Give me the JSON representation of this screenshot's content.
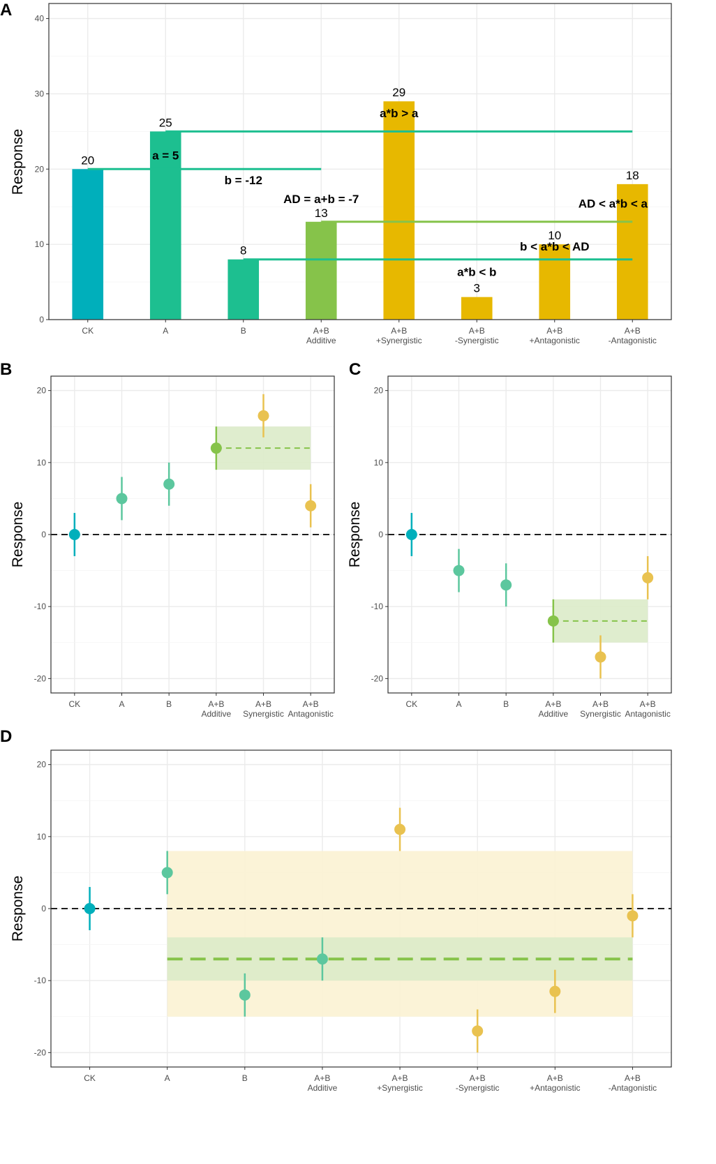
{
  "colors": {
    "ck": "#00AFBB",
    "single": "#1DBF90",
    "single_light": "#5CC79E",
    "additive": "#86C34A",
    "interaction": "#E7B800",
    "interaction_light": "#E9C250",
    "ribbon_green": "#DCEBC9",
    "ribbon_yellow": "#FBF2D3",
    "zero_line": "#000000"
  },
  "chart_data": [
    {
      "panel": "A",
      "type": "bar",
      "title": "",
      "xlabel": "",
      "ylabel": "Response",
      "ylim": [
        0,
        42
      ],
      "yticks": [
        0,
        10,
        20,
        30,
        40
      ],
      "categories": [
        "CK",
        "A",
        "B",
        "A+B\nAdditive",
        "A+B\n+Synergistic",
        "A+B\n-Synergistic",
        "A+B\n+Antagonistic",
        "A+B\n-Antagonistic"
      ],
      "values": [
        20,
        25,
        8,
        13,
        29,
        3,
        10,
        18
      ],
      "bar_labels": [
        "20",
        "25",
        "8",
        "13",
        "29",
        "3",
        "10",
        "18"
      ],
      "bar_color_groups": [
        "ck",
        "single",
        "single",
        "additive",
        "interaction",
        "interaction",
        "interaction",
        "interaction"
      ],
      "reference_lines": [
        {
          "y": 25,
          "from": 1,
          "to": 7,
          "color": "single"
        },
        {
          "y": 20,
          "from": 0,
          "to": 3,
          "color": "single"
        },
        {
          "y": 13,
          "from": 3,
          "to": 7,
          "color": "additive"
        },
        {
          "y": 8,
          "from": 2,
          "to": 7,
          "color": "single"
        }
      ],
      "annotations": [
        {
          "text": "a = 5",
          "x": 1,
          "y": 21.3
        },
        {
          "text": "b = -12",
          "x": 2,
          "y": 18.0
        },
        {
          "text": "AD = a+b = -7",
          "x": 3,
          "y": 15.5
        },
        {
          "text": "a*b > a",
          "x": 4,
          "y": 26.9
        },
        {
          "text": "AD < a*b < a",
          "x": 6.75,
          "y": 14.9
        },
        {
          "text": "b < a*b < AD",
          "x": 6,
          "y": 9.2
        },
        {
          "text": "a*b < b",
          "x": 5,
          "y": 5.8
        }
      ]
    },
    {
      "panel": "B",
      "type": "scatter",
      "title": "",
      "xlabel": "",
      "ylabel": "Response",
      "ylim": [
        -22,
        22
      ],
      "yticks": [
        -20,
        -10,
        0,
        10,
        20
      ],
      "categories": [
        "CK",
        "A",
        "B",
        "A+B\nAdditive",
        "A+B\nSynergistic",
        "A+B\nAntagonistic"
      ],
      "points": [
        {
          "x": 0,
          "y": 0,
          "lo": -3,
          "hi": 3,
          "color": "ck"
        },
        {
          "x": 1,
          "y": 5,
          "lo": 2,
          "hi": 8,
          "color": "single_light"
        },
        {
          "x": 2,
          "y": 7,
          "lo": 4,
          "hi": 10,
          "color": "single_light"
        },
        {
          "x": 3,
          "y": 12,
          "lo": 9,
          "hi": 15,
          "color": "additive"
        },
        {
          "x": 4,
          "y": 16.5,
          "lo": 13.5,
          "hi": 19.5,
          "color": "interaction_light"
        },
        {
          "x": 5,
          "y": 4,
          "lo": 1,
          "hi": 7,
          "color": "interaction_light"
        }
      ],
      "bands": [
        {
          "from": 3,
          "to": 5,
          "lo": 9,
          "hi": 15,
          "center": 12,
          "fill": "ribbon_green",
          "line": "additive"
        }
      ],
      "zero_line": 0
    },
    {
      "panel": "C",
      "type": "scatter",
      "title": "",
      "xlabel": "",
      "ylabel": "Response",
      "ylim": [
        -22,
        22
      ],
      "yticks": [
        -20,
        -10,
        0,
        10,
        20
      ],
      "categories": [
        "CK",
        "A",
        "B",
        "A+B\nAdditive",
        "A+B\nSynergistic",
        "A+B\nAntagonistic"
      ],
      "points": [
        {
          "x": 0,
          "y": 0,
          "lo": -3,
          "hi": 3,
          "color": "ck"
        },
        {
          "x": 1,
          "y": -5,
          "lo": -8,
          "hi": -2,
          "color": "single_light"
        },
        {
          "x": 2,
          "y": -7,
          "lo": -10,
          "hi": -4,
          "color": "single_light"
        },
        {
          "x": 3,
          "y": -12,
          "lo": -15,
          "hi": -9,
          "color": "additive"
        },
        {
          "x": 4,
          "y": -17,
          "lo": -20,
          "hi": -14,
          "color": "interaction_light"
        },
        {
          "x": 5,
          "y": -6,
          "lo": -9,
          "hi": -3,
          "color": "interaction_light"
        }
      ],
      "bands": [
        {
          "from": 3,
          "to": 5,
          "lo": -15,
          "hi": -9,
          "center": -12,
          "fill": "ribbon_green",
          "line": "additive"
        }
      ],
      "zero_line": 0
    },
    {
      "panel": "D",
      "type": "scatter",
      "title": "",
      "xlabel": "",
      "ylabel": "Response",
      "ylim": [
        -22,
        22
      ],
      "yticks": [
        -20,
        -10,
        0,
        10,
        20
      ],
      "categories": [
        "CK",
        "A",
        "B",
        "A+B\nAdditive",
        "A+B\n+Synergistic",
        "A+B\n-Synergistic",
        "A+B\n+Antagonistic",
        "A+B\n-Antagonistic"
      ],
      "points": [
        {
          "x": 0,
          "y": 0,
          "lo": -3,
          "hi": 3,
          "color": "ck"
        },
        {
          "x": 1,
          "y": 5,
          "lo": 2,
          "hi": 8,
          "color": "single_light"
        },
        {
          "x": 2,
          "y": -12,
          "lo": -15,
          "hi": -9,
          "color": "single_light"
        },
        {
          "x": 3,
          "y": -7,
          "lo": -10,
          "hi": -4,
          "color": "single_light"
        },
        {
          "x": 4,
          "y": 11,
          "lo": 8,
          "hi": 14,
          "color": "interaction_light"
        },
        {
          "x": 5,
          "y": -17,
          "lo": -20,
          "hi": -14,
          "color": "interaction_light"
        },
        {
          "x": 6,
          "y": -11.5,
          "lo": -14.5,
          "hi": -8.5,
          "color": "interaction_light"
        },
        {
          "x": 7,
          "y": -1,
          "lo": -4,
          "hi": 2,
          "color": "interaction_light"
        }
      ],
      "bands": [
        {
          "from": 1,
          "to": 7,
          "lo": -15,
          "hi": 8,
          "fill": "ribbon_yellow"
        },
        {
          "from": 1,
          "to": 7,
          "lo": -10,
          "hi": -4,
          "center": -7,
          "fill": "ribbon_green",
          "line": "additive",
          "thick": true
        }
      ],
      "zero_line": 0
    }
  ]
}
